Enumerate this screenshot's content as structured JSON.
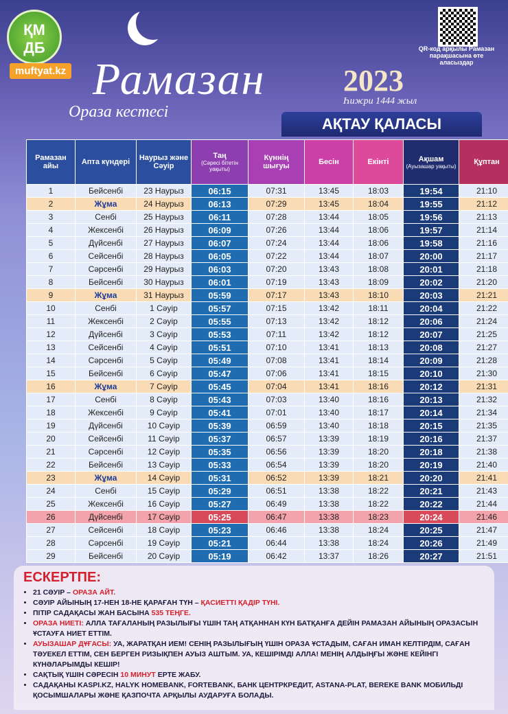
{
  "header": {
    "logo": [
      "ҚМ",
      "ДБ"
    ],
    "site": "muftyat.kz",
    "title": "Рамазан",
    "subtitle": "Ораза кестесі",
    "year": "2023",
    "hijri": "Һижри 1444 жыл",
    "qr_caption": "QR-код арқылы Рамазан парақшасына өте аласыздар",
    "city": "АҚТАУ ҚАЛАСЫ"
  },
  "table": {
    "columns": [
      {
        "title": "Рамазан айы"
      },
      {
        "title": "Апта күндері"
      },
      {
        "title": "Наурыз және Сәуір"
      },
      {
        "title": "Таң",
        "sub": "(Сәресі бітетін уақыты)"
      },
      {
        "title": "Күннің шығуы"
      },
      {
        "title": "Бесін"
      },
      {
        "title": "Екінті"
      },
      {
        "title": "Ақшам",
        "sub": "(Ауызашар уақыты)"
      },
      {
        "title": "Құптан"
      }
    ],
    "highlighted_rows": [
      1,
      8,
      15,
      22
    ],
    "special_row": 25,
    "rows": [
      [
        1,
        "Бейсенбі",
        "23 Наурыз",
        "06:15",
        "07:31",
        "13:45",
        "18:03",
        "19:54",
        "21:10"
      ],
      [
        2,
        "Жұма",
        "24 Наурыз",
        "06:13",
        "07:29",
        "13:45",
        "18:04",
        "19:55",
        "21:12"
      ],
      [
        3,
        "Сенбі",
        "25 Наурыз",
        "06:11",
        "07:28",
        "13:44",
        "18:05",
        "19:56",
        "21:13"
      ],
      [
        4,
        "Жексенбі",
        "26 Наурыз",
        "06:09",
        "07:26",
        "13:44",
        "18:06",
        "19:57",
        "21:14"
      ],
      [
        5,
        "Дүйсенбі",
        "27 Наурыз",
        "06:07",
        "07:24",
        "13:44",
        "18:06",
        "19:58",
        "21:16"
      ],
      [
        6,
        "Сейсенбі",
        "28 Наурыз",
        "06:05",
        "07:22",
        "13:44",
        "18:07",
        "20:00",
        "21:17"
      ],
      [
        7,
        "Сәрсенбі",
        "29 Наурыз",
        "06:03",
        "07:20",
        "13:43",
        "18:08",
        "20:01",
        "21:18"
      ],
      [
        8,
        "Бейсенбі",
        "30 Наурыз",
        "06:01",
        "07:19",
        "13:43",
        "18:09",
        "20:02",
        "21:20"
      ],
      [
        9,
        "Жұма",
        "31 Наурыз",
        "05:59",
        "07:17",
        "13:43",
        "18:10",
        "20:03",
        "21:21"
      ],
      [
        10,
        "Сенбі",
        "1 Сәуір",
        "05:57",
        "07:15",
        "13:42",
        "18:11",
        "20:04",
        "21:22"
      ],
      [
        11,
        "Жексенбі",
        "2 Сәуір",
        "05:55",
        "07:13",
        "13:42",
        "18:12",
        "20:06",
        "21:24"
      ],
      [
        12,
        "Дүйсенбі",
        "3 Сәуір",
        "05:53",
        "07:11",
        "13:42",
        "18:12",
        "20:07",
        "21:25"
      ],
      [
        13,
        "Сейсенбі",
        "4 Сәуір",
        "05:51",
        "07:10",
        "13:41",
        "18:13",
        "20:08",
        "21:27"
      ],
      [
        14,
        "Сәрсенбі",
        "5 Сәуір",
        "05:49",
        "07:08",
        "13:41",
        "18:14",
        "20:09",
        "21:28"
      ],
      [
        15,
        "Бейсенбі",
        "6 Сәуір",
        "05:47",
        "07:06",
        "13:41",
        "18:15",
        "20:10",
        "21:30"
      ],
      [
        16,
        "Жұма",
        "7 Сәуір",
        "05:45",
        "07:04",
        "13:41",
        "18:16",
        "20:12",
        "21:31"
      ],
      [
        17,
        "Сенбі",
        "8 Сәуір",
        "05:43",
        "07:03",
        "13:40",
        "18:16",
        "20:13",
        "21:32"
      ],
      [
        18,
        "Жексенбі",
        "9 Сәуір",
        "05:41",
        "07:01",
        "13:40",
        "18:17",
        "20:14",
        "21:34"
      ],
      [
        19,
        "Дүйсенбі",
        "10 Сәуір",
        "05:39",
        "06:59",
        "13:40",
        "18:18",
        "20:15",
        "21:35"
      ],
      [
        20,
        "Сейсенбі",
        "11 Сәуір",
        "05:37",
        "06:57",
        "13:39",
        "18:19",
        "20:16",
        "21:37"
      ],
      [
        21,
        "Сәрсенбі",
        "12 Сәуір",
        "05:35",
        "06:56",
        "13:39",
        "18:20",
        "20:18",
        "21:38"
      ],
      [
        22,
        "Бейсенбі",
        "13 Сәуір",
        "05:33",
        "06:54",
        "13:39",
        "18:20",
        "20:19",
        "21:40"
      ],
      [
        23,
        "Жұма",
        "14 Сәуір",
        "05:31",
        "06:52",
        "13:39",
        "18:21",
        "20:20",
        "21:41"
      ],
      [
        24,
        "Сенбі",
        "15 Сәуір",
        "05:29",
        "06:51",
        "13:38",
        "18:22",
        "20:21",
        "21:43"
      ],
      [
        25,
        "Жексенбі",
        "16 Сәуір",
        "05:27",
        "06:49",
        "13:38",
        "18:22",
        "20:22",
        "21:44"
      ],
      [
        26,
        "Дүйсенбі",
        "17 Сәуір",
        "05:25",
        "06:47",
        "13:38",
        "18:23",
        "20:24",
        "21:46"
      ],
      [
        27,
        "Сейсенбі",
        "18 Сәуір",
        "05:23",
        "06:46",
        "13:38",
        "18:24",
        "20:25",
        "21:47"
      ],
      [
        28,
        "Сәрсенбі",
        "19 Сәуір",
        "05:21",
        "06:44",
        "13:38",
        "18:24",
        "20:26",
        "21:49"
      ],
      [
        29,
        "Бейсенбі",
        "20 Сәуір",
        "05:19",
        "06:42",
        "13:37",
        "18:26",
        "20:27",
        "21:51"
      ]
    ]
  },
  "notes": {
    "title": "ЕСКЕРТПЕ:",
    "items": [
      [
        {
          "text": "21 СӘУІР – "
        },
        {
          "text": "ОРАЗА АЙТ.",
          "red": true
        }
      ],
      [
        {
          "text": "СӘУІР АЙЫНЫҢ 17-НЕН 18-НЕ ҚАРАҒАН ТҮН – "
        },
        {
          "text": "ҚАСИЕТТІ ҚАДІР ТҮНІ.",
          "red": true
        }
      ],
      [
        {
          "text": "ПІТІР САДАҚАСЫ ЖАН БАСЫНА "
        },
        {
          "text": "535 ТЕҢГЕ.",
          "red": true
        }
      ],
      [
        {
          "text": "ОРАЗА НИЕТІ:",
          "red": true
        },
        {
          "text": " АЛЛА ТАҒАЛАНЫҢ РАЗЫЛЫҒЫ ҮШІН ТАҢ АТҚАННАН КҮН БАТҚАНҒА ДЕЙІН РАМАЗАН АЙЫНЫҢ ОРАЗАСЫН ҰСТАУҒА НИЕТ ЕТТІМ."
        }
      ],
      [
        {
          "text": "АУЫЗАШАР ДҰҒАСЫ:",
          "red": true
        },
        {
          "text": " УА, ЖАРАТҚАН ИЕМ! СЕНІҢ РАЗЫЛЫҒЫҢ ҮШІН ОРАЗА ҰСТАДЫМ, САҒАН ИМАН КЕЛТІРДІМ, САҒАН ТӘУЕКЕЛ ЕТТІМ, СЕН БЕРГЕН РИЗЫҚПЕН АУЫЗ АШТЫМ. УА, КЕШІРІМДІ АЛЛА! МЕНІҢ АЛДЫҢҒЫ ЖӘНЕ КЕЙІНГІ КҮНӘЛАРЫМДЫ КЕШІР!"
        }
      ],
      [
        {
          "text": "САҚТЫҚ ҮШІН СӘРЕСІН "
        },
        {
          "text": "10 МИНУТ",
          "red": true
        },
        {
          "text": " ЕРТЕ ЖАБУ."
        }
      ],
      [
        {
          "text": "САДАҚАНЫ KASPI.KZ, HALYK HOMEBANK, FORTEBANK, БАНК ЦЕНТРКРЕДИТ, ASTANA-PLAT, BEREKE BANK МОБИЛЬДІ ҚОСЫМШАЛАРЫ ЖӘНЕ ҚАЗПОЧТА АРҚЫЛЫ АУДАРУҒА БОЛАДЫ."
        }
      ]
    ]
  }
}
